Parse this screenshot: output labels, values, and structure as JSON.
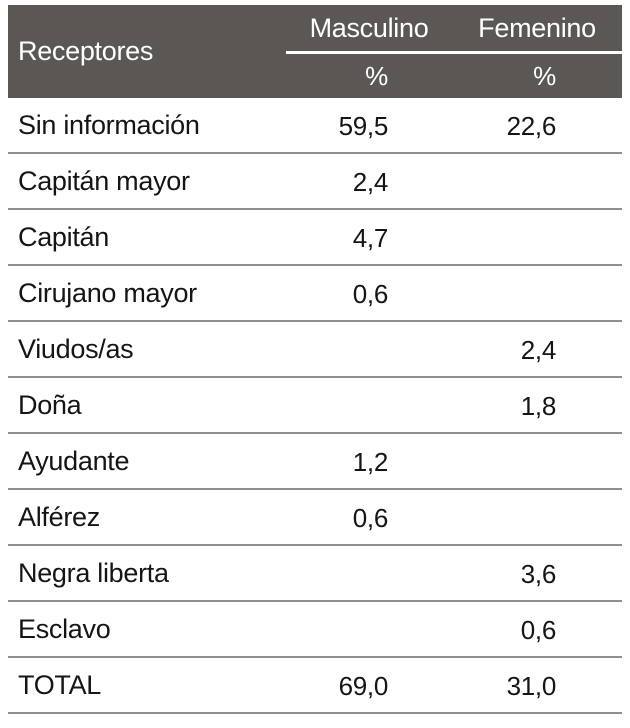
{
  "colors": {
    "header_bg": "#5a5755",
    "header_text": "#ffffff",
    "row_line": "#8f8f8f",
    "body_text": "#151515"
  },
  "header": {
    "row_label": "Receptores",
    "col_masculino": "Masculino",
    "col_femenino": "Femenino",
    "unit_masculino": "%",
    "unit_femenino": "%"
  },
  "rows": [
    {
      "label": "Sin información",
      "masculino": "59,5",
      "femenino": "22,6"
    },
    {
      "label": "Capitán mayor",
      "masculino": "2,4",
      "femenino": ""
    },
    {
      "label": "Capitán",
      "masculino": "4,7",
      "femenino": ""
    },
    {
      "label": "Cirujano mayor",
      "masculino": "0,6",
      "femenino": ""
    },
    {
      "label": "Viudos/as",
      "masculino": "",
      "femenino": "2,4"
    },
    {
      "label": "Doña",
      "masculino": "",
      "femenino": "1,8"
    },
    {
      "label": "Ayudante",
      "masculino": "1,2",
      "femenino": ""
    },
    {
      "label": "Alférez",
      "masculino": "0,6",
      "femenino": ""
    },
    {
      "label": "Negra liberta",
      "masculino": "",
      "femenino": "3,6"
    },
    {
      "label": "Esclavo",
      "masculino": "",
      "femenino": "0,6"
    },
    {
      "label": "TOTAL",
      "masculino": "69,0",
      "femenino": "31,0"
    }
  ],
  "chart_data": {
    "type": "table",
    "title": "",
    "columns": [
      "Receptores",
      "Masculino %",
      "Femenino %"
    ],
    "rows": [
      [
        "Sin información",
        59.5,
        22.6
      ],
      [
        "Capitán mayor",
        2.4,
        null
      ],
      [
        "Capitán",
        4.7,
        null
      ],
      [
        "Cirujano mayor",
        0.6,
        null
      ],
      [
        "Viudos/as",
        null,
        2.4
      ],
      [
        "Doña",
        null,
        1.8
      ],
      [
        "Ayudante",
        1.2,
        null
      ],
      [
        "Alférez",
        0.6,
        null
      ],
      [
        "Negra liberta",
        null,
        3.6
      ],
      [
        "Esclavo",
        null,
        0.6
      ],
      [
        "TOTAL",
        69.0,
        31.0
      ]
    ]
  }
}
